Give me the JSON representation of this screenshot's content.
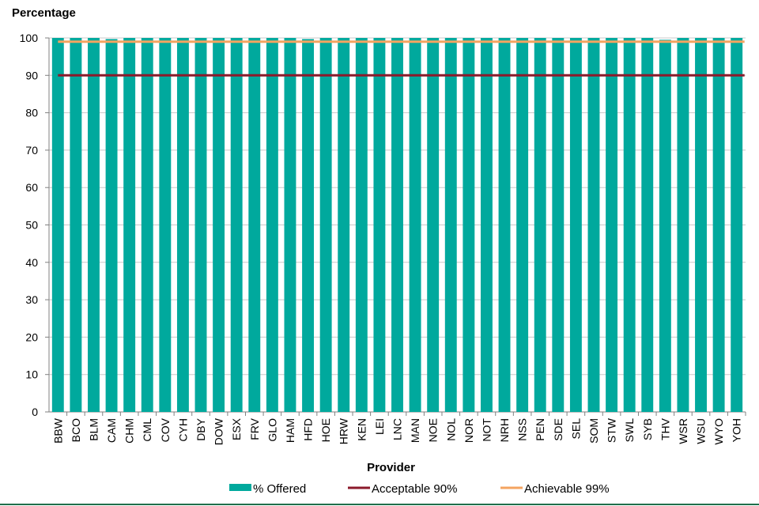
{
  "chart_data": {
    "type": "bar",
    "ylabel": "Percentage",
    "xlabel": "Provider",
    "ylim": [
      0,
      100
    ],
    "yticks": [
      0,
      10,
      20,
      30,
      40,
      50,
      60,
      70,
      80,
      90,
      100
    ],
    "grid": true,
    "legend_position": "bottom",
    "categories": [
      "BBW",
      "BCO",
      "BLM",
      "CAM",
      "CHM",
      "CML",
      "COV",
      "CYH",
      "DBY",
      "DOW",
      "ESX",
      "FRV",
      "GLO",
      "HAM",
      "HFD",
      "HOE",
      "HRW",
      "KEN",
      "LEI",
      "LNC",
      "MAN",
      "NOE",
      "NOL",
      "NOR",
      "NOT",
      "NRH",
      "NSS",
      "PEN",
      "SDE",
      "SEL",
      "SOM",
      "STW",
      "SWL",
      "SYB",
      "THV",
      "WSR",
      "WSU",
      "WYO",
      "YOH"
    ],
    "series": [
      {
        "name": "% Offered",
        "type": "bar",
        "color": "#00a99d",
        "values": [
          100,
          100,
          100,
          99.7,
          100,
          100,
          100,
          100,
          100,
          100,
          100,
          100,
          100,
          100,
          99.7,
          100,
          100,
          100,
          100,
          100,
          100,
          100,
          100,
          100,
          100,
          100,
          100,
          100,
          100,
          100,
          100,
          100,
          100,
          100,
          99.5,
          100,
          100,
          100,
          100
        ]
      },
      {
        "name": "Acceptable 90%",
        "type": "line",
        "color": "#8b1a2b",
        "value": 90
      },
      {
        "name": "Achievable 99%",
        "type": "line",
        "color": "#f4a460",
        "value": 99
      }
    ]
  }
}
